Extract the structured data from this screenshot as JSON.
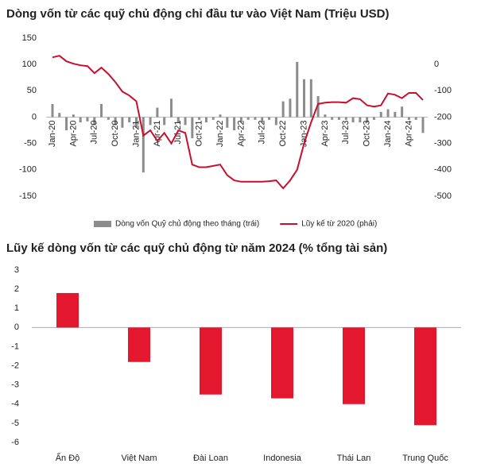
{
  "chart_data": [
    {
      "type": "bar_line",
      "title": "Dòng vốn từ các quỹ chủ động chỉ đầu tư vào Việt Nam (Triệu USD)",
      "categories": [
        "Jan-20",
        null,
        null,
        "Apr-20",
        null,
        null,
        "Jul-20",
        null,
        null,
        "Oct-20",
        null,
        null,
        "Jan-21",
        null,
        null,
        "Apr-21",
        null,
        null,
        "Jul-21",
        null,
        null,
        "Oct-21",
        null,
        null,
        "Jan-22",
        null,
        null,
        "Apr-22",
        null,
        null,
        "Jul-22",
        null,
        null,
        "Oct-22",
        null,
        null,
        "Jan-23",
        null,
        null,
        "Apr-23",
        null,
        null,
        "Jul-23",
        null,
        null,
        "Oct-23",
        null,
        null,
        "Jan-24",
        null,
        null,
        "Apr-24",
        null,
        null
      ],
      "series": [
        {
          "name": "Dòng vốn Quỹ chủ động theo tháng (trái)",
          "color": "#8c8c8c",
          "kind": "bar",
          "values": [
            25,
            8,
            -25,
            5,
            -10,
            -8,
            -15,
            25,
            -5,
            -15,
            -20,
            -10,
            -20,
            -105,
            -15,
            18,
            -15,
            35,
            -10,
            -15,
            -40,
            -5,
            -10,
            -5,
            5,
            -20,
            -25,
            -10,
            -5,
            -5,
            -10,
            -5,
            -15,
            30,
            35,
            105,
            72,
            72,
            40,
            5,
            -5,
            -5,
            -5,
            -10,
            -10,
            -10,
            -5,
            10,
            15,
            10,
            20,
            -5,
            -5,
            -30
          ]
        },
        {
          "name": "Lũy kế từ 2020 (phải)",
          "color": "#c8102e",
          "kind": "line",
          "axis": "y2",
          "values": [
            27,
            33,
            12,
            3,
            -3,
            -6,
            -33,
            -12,
            -36,
            -67,
            -103,
            -118,
            -140,
            -270,
            -250,
            -290,
            -260,
            -300,
            -250,
            -260,
            -380,
            -390,
            -390,
            -385,
            -380,
            -420,
            -440,
            -445,
            -445,
            -445,
            -445,
            -443,
            -440,
            -470,
            -440,
            -400,
            -300,
            -220,
            -150,
            -145,
            -143,
            -143,
            -145,
            -128,
            -132,
            -155,
            -160,
            -155,
            -110,
            -115,
            -128,
            -108,
            -108,
            -135
          ]
        }
      ],
      "ylim": [
        -150,
        150
      ],
      "yticks": [
        -150,
        -100,
        -50,
        0,
        50,
        100,
        150
      ],
      "y2lim": [
        -500,
        100
      ],
      "y2ticks": [
        -500,
        -400,
        -300,
        -200,
        -100,
        0
      ],
      "grid": false,
      "legend": "bottom"
    },
    {
      "type": "bar",
      "title": "Lũy kế dòng vốn từ các quỹ chủ động từ năm 2024 (% tổng tài sản)",
      "categories": [
        "Ấn Độ",
        "Việt Nam",
        "Đài Loan",
        "Indonesia",
        "Thái Lan",
        "Trung Quốc"
      ],
      "values": [
        1.8,
        -1.8,
        -3.5,
        -3.7,
        -4.0,
        -5.1
      ],
      "color": "#e3172e",
      "ylim": [
        -6,
        3
      ],
      "yticks": [
        -6,
        -5,
        -4,
        -3,
        -2,
        -1,
        0,
        1,
        2,
        3
      ],
      "grid": false
    }
  ]
}
